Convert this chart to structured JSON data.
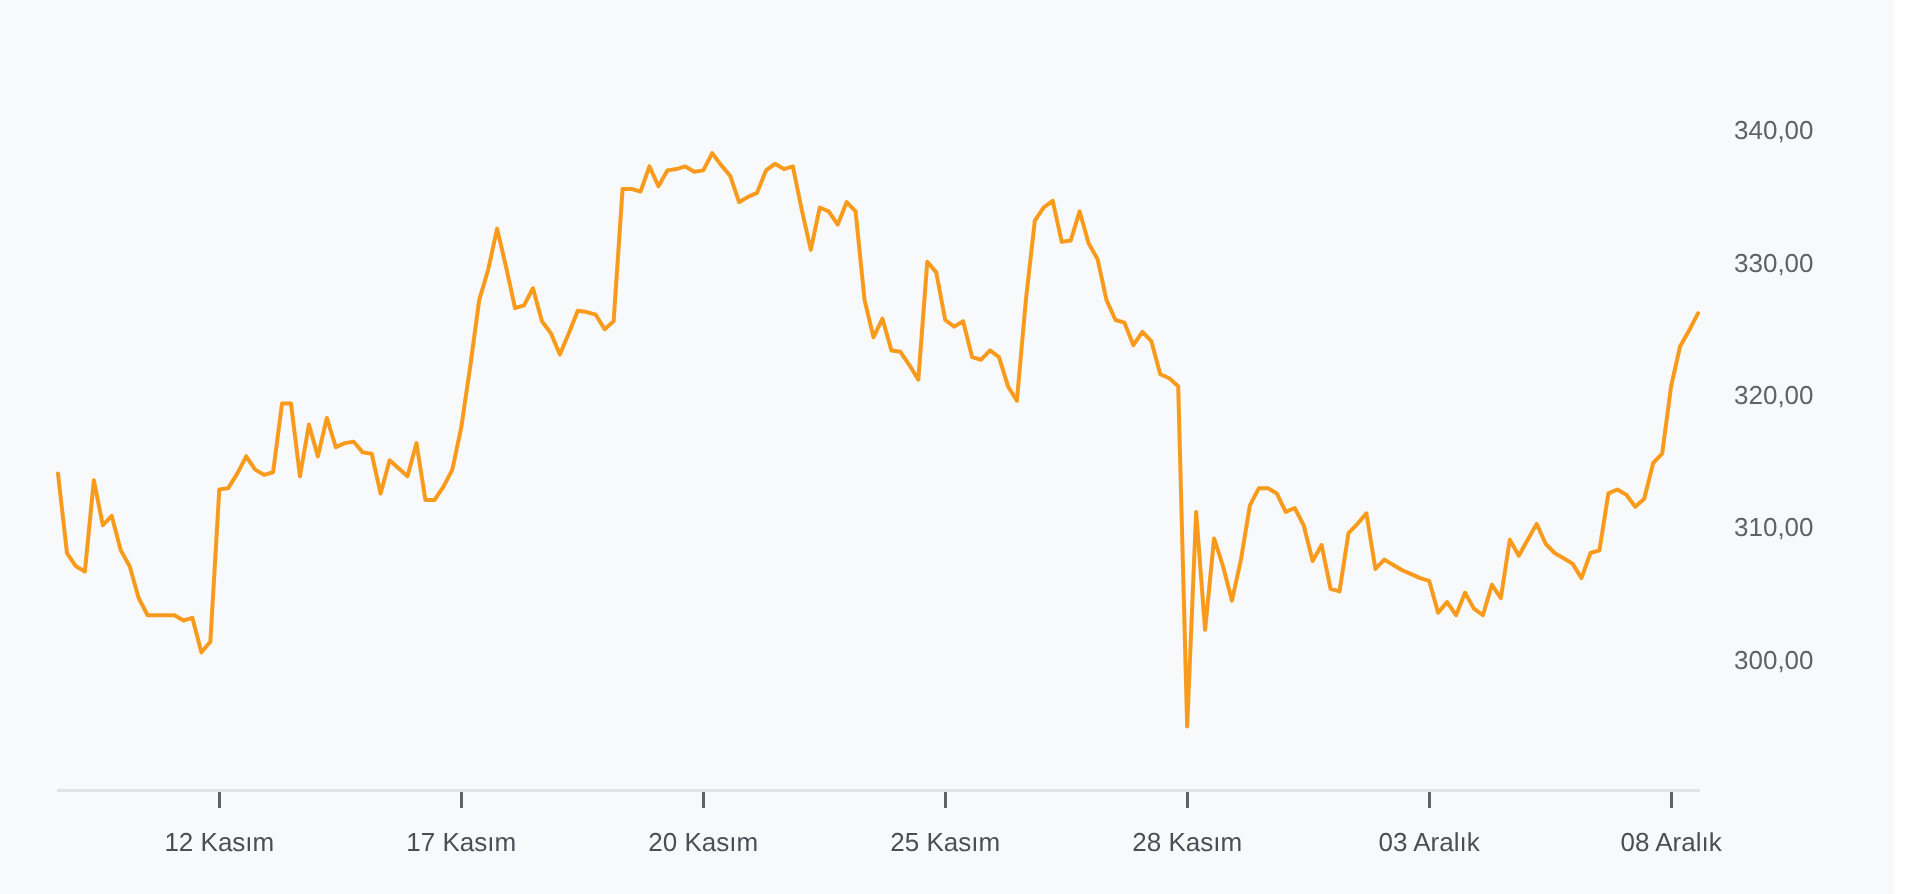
{
  "chart_data": {
    "type": "line",
    "categories": [
      null,
      null,
      null,
      null,
      null,
      null,
      null,
      null,
      null,
      null,
      null,
      null,
      null,
      null,
      null,
      null,
      null,
      null,
      "12 Kasım",
      null,
      null,
      null,
      null,
      null,
      null,
      null,
      null,
      null,
      null,
      null,
      null,
      null,
      null,
      null,
      null,
      null,
      null,
      null,
      null,
      null,
      null,
      null,
      null,
      null,
      null,
      "17 Kasım",
      null,
      null,
      null,
      null,
      null,
      null,
      null,
      null,
      null,
      null,
      null,
      null,
      null,
      null,
      null,
      null,
      null,
      null,
      null,
      null,
      null,
      null,
      null,
      null,
      null,
      null,
      "20 Kasım",
      null,
      null,
      null,
      null,
      null,
      null,
      null,
      null,
      null,
      null,
      null,
      null,
      null,
      null,
      null,
      null,
      null,
      null,
      null,
      null,
      null,
      null,
      null,
      null,
      null,
      null,
      "25 Kasım",
      null,
      null,
      null,
      null,
      null,
      null,
      null,
      null,
      null,
      null,
      null,
      null,
      null,
      null,
      null,
      null,
      null,
      null,
      null,
      null,
      null,
      null,
      null,
      null,
      null,
      null,
      "28 Kasım",
      null,
      null,
      null,
      null,
      null,
      null,
      null,
      null,
      null,
      null,
      null,
      null,
      null,
      null,
      null,
      null,
      null,
      null,
      null,
      null,
      null,
      null,
      null,
      null,
      null,
      null,
      "03 Aralık",
      null,
      null,
      null,
      null,
      null,
      null,
      null,
      null,
      null,
      null,
      null,
      null,
      null,
      null,
      null,
      null,
      null,
      null,
      null,
      null,
      null,
      null,
      null,
      null,
      null,
      null,
      "08 Aralık",
      null,
      null,
      null
    ],
    "values": [
      314.2,
      308.2,
      307.2,
      306.8,
      313.7,
      310.3,
      311.0,
      308.4,
      307.2,
      304.8,
      303.5,
      303.5,
      303.5,
      303.5,
      303.1,
      303.3,
      300.7,
      301.5,
      313.0,
      313.1,
      314.2,
      315.5,
      314.5,
      314.1,
      314.3,
      319.5,
      319.5,
      314.0,
      317.9,
      315.5,
      318.4,
      316.2,
      316.5,
      316.6,
      315.8,
      315.7,
      312.7,
      315.2,
      314.6,
      314.0,
      316.5,
      312.2,
      312.2,
      313.2,
      314.5,
      317.7,
      322.3,
      327.3,
      329.6,
      332.7,
      329.8,
      326.7,
      326.9,
      328.2,
      325.7,
      324.8,
      323.2,
      324.8,
      326.5,
      326.4,
      326.2,
      325.1,
      325.7,
      335.7,
      335.7,
      335.5,
      337.4,
      335.9,
      337.1,
      337.2,
      337.4,
      337.0,
      337.1,
      338.4,
      337.5,
      336.7,
      334.7,
      335.1,
      335.4,
      337.1,
      337.6,
      337.2,
      337.4,
      334.1,
      331.1,
      334.3,
      334.0,
      333.0,
      334.7,
      334.0,
      327.3,
      324.5,
      325.9,
      323.5,
      323.4,
      322.4,
      321.3,
      330.2,
      329.4,
      325.8,
      325.3,
      325.7,
      323.0,
      322.8,
      323.5,
      323.0,
      320.8,
      319.7,
      327.3,
      333.3,
      334.3,
      334.8,
      331.7,
      331.8,
      334.0,
      331.6,
      330.4,
      327.3,
      325.8,
      325.6,
      323.9,
      324.9,
      324.2,
      321.7,
      321.4,
      320.8,
      295.1,
      311.3,
      302.4,
      309.3,
      307.2,
      304.6,
      307.7,
      311.8,
      313.1,
      313.1,
      312.7,
      311.3,
      311.6,
      310.3,
      307.6,
      308.8,
      305.5,
      305.3,
      309.7,
      310.4,
      311.2,
      307.0,
      307.7,
      307.3,
      306.9,
      306.6,
      306.3,
      306.1,
      303.7,
      304.5,
      303.5,
      305.2,
      304.0,
      303.5,
      305.8,
      304.8,
      309.2,
      308.0,
      309.2,
      310.4,
      308.9,
      308.2,
      307.8,
      307.4,
      306.3,
      308.2,
      308.4,
      312.7,
      313.0,
      312.6,
      311.7,
      312.3,
      315.0,
      315.7,
      320.8,
      323.8,
      325.0,
      326.3
    ],
    "color": "#f89a1c",
    "ylim": [
      290.3,
      340
    ],
    "yticks": [
      {
        "value": 300,
        "label": "300,00"
      },
      {
        "value": 310,
        "label": "310,00"
      },
      {
        "value": 320,
        "label": "320,00"
      },
      {
        "value": 330,
        "label": "330,00"
      },
      {
        "value": 340,
        "label": "340,00"
      }
    ]
  }
}
